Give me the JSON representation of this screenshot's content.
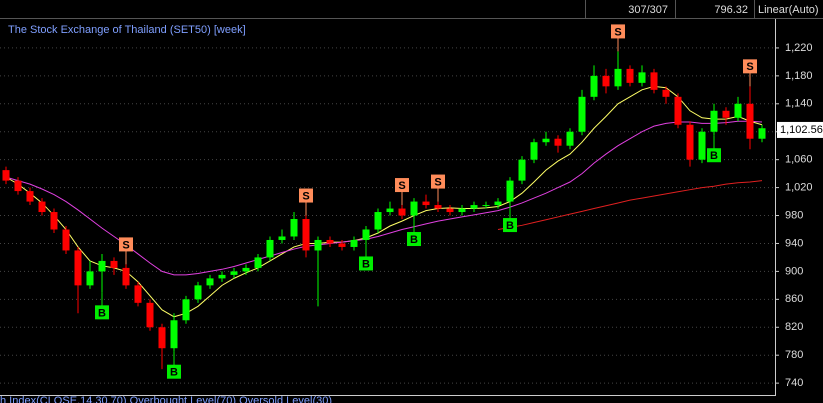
{
  "top_bar": {
    "count": "307/307",
    "value": "796.32",
    "scale": "Linear(Auto)"
  },
  "chart_data": {
    "type": "candlestick",
    "title": "The Stock Exchange of Thailand (SET50) [week]",
    "footer": "h Index(CLOSE,14,30,70) Overbought Level(70) Oversold Level(30)",
    "up_color": "#00ff00",
    "down_color": "#ff0000",
    "open": [
      1045,
      1030,
      1015,
      1000,
      985,
      960,
      930,
      880,
      900,
      915,
      905,
      880,
      855,
      820,
      790,
      830,
      860,
      880,
      890,
      895,
      900,
      905,
      920,
      945,
      950,
      975,
      930,
      945,
      940,
      935,
      945,
      960,
      985,
      990,
      980,
      1000,
      995,
      990,
      985,
      990,
      995,
      995,
      1000,
      1030,
      1060,
      1085,
      1090,
      1080,
      1100,
      1150,
      1180,
      1165,
      1190,
      1170,
      1185,
      1160,
      1150,
      1110,
      1060,
      1100,
      1130,
      1120,
      1140,
      1090
    ],
    "high": [
      1050,
      1035,
      1020,
      1005,
      990,
      965,
      935,
      915,
      925,
      920,
      910,
      885,
      860,
      825,
      840,
      865,
      885,
      895,
      900,
      905,
      910,
      925,
      950,
      960,
      985,
      980,
      950,
      950,
      945,
      950,
      965,
      990,
      1000,
      995,
      1005,
      1010,
      1000,
      995,
      995,
      1000,
      1000,
      1005,
      1035,
      1065,
      1090,
      1100,
      1095,
      1105,
      1160,
      1195,
      1190,
      1215,
      1195,
      1195,
      1190,
      1165,
      1155,
      1115,
      1105,
      1140,
      1135,
      1150,
      1165,
      1110
    ],
    "low": [
      1025,
      1010,
      995,
      980,
      955,
      925,
      840,
      875,
      870,
      895,
      875,
      850,
      815,
      760,
      785,
      825,
      855,
      875,
      885,
      890,
      895,
      900,
      915,
      940,
      945,
      920,
      850,
      935,
      930,
      930,
      940,
      955,
      980,
      975,
      975,
      990,
      985,
      980,
      980,
      985,
      990,
      990,
      995,
      1025,
      1055,
      1080,
      1070,
      1075,
      1095,
      1145,
      1155,
      1160,
      1165,
      1165,
      1155,
      1140,
      1105,
      1050,
      1055,
      1095,
      1110,
      1115,
      1075,
      1085
    ],
    "close": [
      1030,
      1015,
      1000,
      985,
      960,
      930,
      880,
      900,
      915,
      905,
      880,
      855,
      820,
      790,
      830,
      860,
      880,
      890,
      895,
      900,
      905,
      920,
      945,
      950,
      975,
      930,
      945,
      940,
      935,
      945,
      960,
      985,
      990,
      980,
      1000,
      995,
      990,
      985,
      990,
      995,
      995,
      1000,
      1030,
      1060,
      1085,
      1090,
      1080,
      1100,
      1150,
      1180,
      1165,
      1190,
      1170,
      1185,
      1160,
      1150,
      1110,
      1060,
      1100,
      1130,
      1120,
      1140,
      1090,
      1105
    ],
    "signals": [
      null,
      null,
      null,
      null,
      null,
      null,
      null,
      null,
      "B",
      null,
      "S",
      null,
      null,
      null,
      "B",
      null,
      null,
      null,
      null,
      null,
      null,
      null,
      null,
      null,
      null,
      "S",
      null,
      null,
      null,
      null,
      "B",
      null,
      null,
      "S",
      "B",
      null,
      "S",
      null,
      null,
      null,
      null,
      null,
      "B",
      null,
      null,
      null,
      null,
      null,
      null,
      null,
      null,
      "S",
      null,
      null,
      null,
      null,
      null,
      null,
      null,
      "B",
      null,
      null,
      "S",
      null
    ],
    "buy_color": "#00ee00",
    "sell_color": "#ff8c5a",
    "series": [
      {
        "color": "#ffff66",
        "values": [
          1035,
          1025,
          1012,
          998,
          980,
          960,
          935,
          915,
          908,
          905,
          900,
          885,
          865,
          845,
          835,
          840,
          850,
          865,
          880,
          890,
          898,
          905,
          915,
          925,
          935,
          940,
          940,
          942,
          942,
          944,
          948,
          955,
          965,
          972,
          980,
          987,
          990,
          991,
          990,
          990,
          991,
          993,
          1000,
          1012,
          1028,
          1045,
          1058,
          1068,
          1085,
          1105,
          1122,
          1140,
          1150,
          1160,
          1165,
          1163,
          1150,
          1130,
          1120,
          1118,
          1118,
          1122,
          1115,
          1110
        ]
      },
      {
        "color": "#e040e0",
        "values": [
          1035,
          1030,
          1025,
          1018,
          1010,
          1000,
          988,
          975,
          962,
          950,
          938,
          925,
          912,
          900,
          895,
          895,
          897,
          900,
          903,
          907,
          912,
          917,
          922,
          927,
          932,
          936,
          938,
          940,
          942,
          944,
          946,
          950,
          955,
          960,
          964,
          968,
          972,
          975,
          978,
          981,
          984,
          987,
          992,
          998,
          1005,
          1012,
          1020,
          1028,
          1040,
          1055,
          1068,
          1080,
          1090,
          1100,
          1108,
          1112,
          1114,
          1114,
          1112,
          1112,
          1113,
          1115,
          1115,
          1114
        ]
      },
      {
        "color": "#e02020",
        "values": [
          null,
          null,
          null,
          null,
          null,
          null,
          null,
          null,
          null,
          null,
          null,
          null,
          null,
          null,
          null,
          null,
          null,
          null,
          null,
          null,
          null,
          null,
          null,
          null,
          null,
          null,
          null,
          null,
          null,
          null,
          null,
          null,
          null,
          null,
          null,
          null,
          null,
          null,
          null,
          null,
          null,
          960,
          963,
          966,
          970,
          974,
          978,
          982,
          986,
          990,
          994,
          998,
          1002,
          1005,
          1008,
          1011,
          1014,
          1017,
          1020,
          1022,
          1025,
          1027,
          1028,
          1030
        ]
      }
    ],
    "last_price": {
      "value": 1102.56,
      "label": "1,102.56"
    },
    "ylim": [
      723,
      1260
    ],
    "yticks": [
      {
        "value": 740,
        "label": "740"
      },
      {
        "value": 780,
        "label": "780"
      },
      {
        "value": 820,
        "label": "820"
      },
      {
        "value": 860,
        "label": "860"
      },
      {
        "value": 900,
        "label": "900"
      },
      {
        "value": 940,
        "label": "940"
      },
      {
        "value": 980,
        "label": "980"
      },
      {
        "value": 1020,
        "label": "1,020"
      },
      {
        "value": 1060,
        "label": "1,060"
      },
      {
        "value": 1100,
        "label": "1,100"
      },
      {
        "value": 1140,
        "label": "1,140"
      },
      {
        "value": 1180,
        "label": "1,180"
      },
      {
        "value": 1220,
        "label": "1,220"
      }
    ],
    "grid": true
  }
}
